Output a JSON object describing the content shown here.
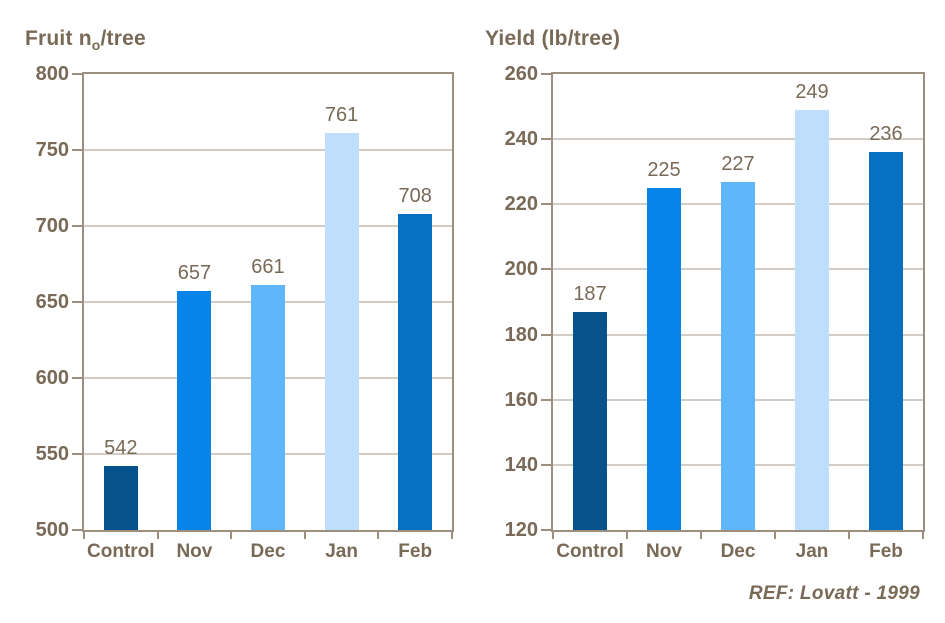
{
  "figure": {
    "footer_reference": "REF: Lovatt - 1999"
  },
  "colors": {
    "text": "#796A57",
    "axis": "#9C8F80",
    "grid": "#A5988A",
    "background": "#FFFFFF",
    "bar_control": "#06538C",
    "bar_nov": "#0684E8",
    "bar_dec": "#60B6FA",
    "bar_jan": "#BEDEFB",
    "bar_feb": "#0571C0"
  },
  "chart_data": [
    {
      "type": "bar",
      "title": "Fruit no/tree",
      "title_pre": "Fruit n",
      "title_sub": "o",
      "title_post": "/tree",
      "categories": [
        "Control",
        "Nov",
        "Dec",
        "Jan",
        "Feb"
      ],
      "values": [
        542,
        657,
        661,
        761,
        708
      ],
      "ylim": [
        500,
        800
      ],
      "yticks": [
        500,
        550,
        600,
        650,
        700,
        750,
        800
      ],
      "grid": true,
      "legend": false,
      "bar_colors": [
        "#06538C",
        "#0684E8",
        "#60B6FA",
        "#BEDEFB",
        "#0571C0"
      ]
    },
    {
      "type": "bar",
      "title": "Yield (lb/tree)",
      "title_pre": "Yield (lb/tree)",
      "title_sub": "",
      "title_post": "",
      "categories": [
        "Control",
        "Nov",
        "Dec",
        "Jan",
        "Feb"
      ],
      "values": [
        187,
        225,
        227,
        249,
        236
      ],
      "ylim": [
        120,
        260
      ],
      "yticks": [
        120,
        140,
        160,
        180,
        200,
        220,
        240,
        260
      ],
      "grid": true,
      "legend": false,
      "bar_colors": [
        "#06538C",
        "#0684E8",
        "#60B6FA",
        "#BEDEFB",
        "#0571C0"
      ]
    }
  ]
}
